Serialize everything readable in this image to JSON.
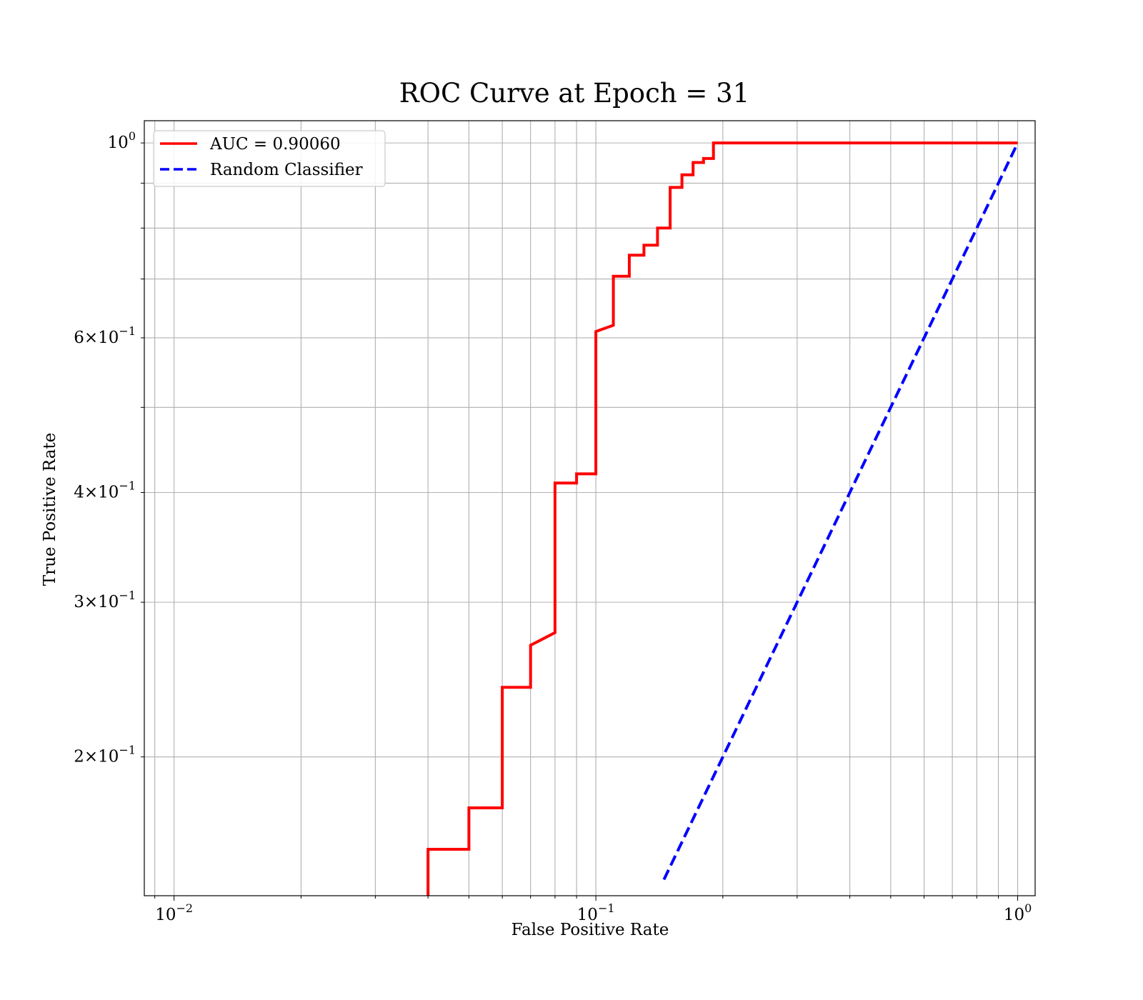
{
  "chart_data": {
    "type": "line",
    "title": "ROC Curve at Epoch = 31",
    "xlabel": "False Positive Rate",
    "ylabel": "True Positive Rate",
    "xscale": "log",
    "yscale": "log",
    "xlim": [
      0.0085,
      1.1
    ],
    "ylim": [
      0.139,
      1.06
    ],
    "grid": "both major and minor",
    "legend_position": "top-left",
    "x_major_ticks": [
      {
        "value": 0.01,
        "base": "10",
        "exp": "−2"
      },
      {
        "value": 0.1,
        "base": "10",
        "exp": "−1"
      },
      {
        "value": 1.0,
        "base": "10",
        "exp": "0"
      }
    ],
    "y_ticks": [
      {
        "value": 1.0,
        "mant": "",
        "base": "10",
        "exp": "0"
      },
      {
        "value": 0.6,
        "mant": "6",
        "base": "10",
        "exp": "−1"
      },
      {
        "value": 0.4,
        "mant": "4",
        "base": "10",
        "exp": "−1"
      },
      {
        "value": 0.3,
        "mant": "3",
        "base": "10",
        "exp": "−1"
      },
      {
        "value": 0.2,
        "mant": "2",
        "base": "10",
        "exp": "−1"
      }
    ],
    "y_minor_grid": [
      0.9,
      0.8,
      0.7,
      0.5
    ],
    "series": [
      {
        "name": "AUC = 0.90060",
        "color": "#ff0000",
        "style": "solid",
        "x": [
          0.04,
          0.04,
          0.05,
          0.05,
          0.06,
          0.06,
          0.07,
          0.07,
          0.08,
          0.08,
          0.09,
          0.09,
          0.1,
          0.1,
          0.11,
          0.11,
          0.12,
          0.12,
          0.13,
          0.13,
          0.14,
          0.14,
          0.15,
          0.15,
          0.16,
          0.16,
          0.17,
          0.17,
          0.18,
          0.18,
          0.19,
          0.19,
          1.0
        ],
        "y": [
          0.139,
          0.157,
          0.157,
          0.175,
          0.175,
          0.24,
          0.24,
          0.268,
          0.277,
          0.41,
          0.41,
          0.42,
          0.42,
          0.61,
          0.62,
          0.705,
          0.705,
          0.745,
          0.745,
          0.765,
          0.765,
          0.8,
          0.8,
          0.89,
          0.89,
          0.92,
          0.92,
          0.95,
          0.95,
          0.96,
          0.96,
          1.0,
          1.0
        ]
      },
      {
        "name": "Random Classifier",
        "color": "#0000ff",
        "style": "dashed",
        "x": [
          0.145,
          1.0
        ],
        "y": [
          0.145,
          1.0
        ]
      }
    ]
  }
}
